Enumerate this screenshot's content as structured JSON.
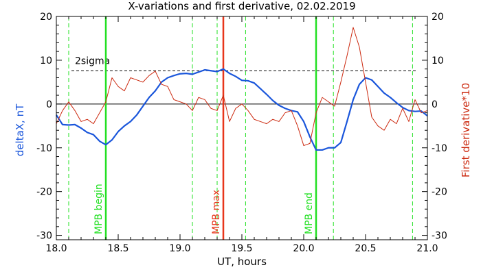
{
  "chart_data": {
    "type": "line",
    "title": "X-variations and first derivative, 02.02.2019",
    "xlabel": "UT, hours",
    "ylabel_left": "deltaX, nT",
    "ylabel_right": "First derivative*10",
    "xlim": [
      18.0,
      21.0
    ],
    "ylim": [
      -31,
      20
    ],
    "xticks": [
      "18.0",
      "18.5",
      "19.0",
      "19.5",
      "20.0",
      "20.5",
      "21.0"
    ],
    "xtick_values": [
      18.0,
      18.5,
      19.0,
      19.5,
      20.0,
      20.5,
      21.0
    ],
    "yticks": [
      "20",
      "10",
      "0",
      "-10",
      "-20",
      "-30"
    ],
    "ytick_values": [
      20,
      10,
      0,
      -10,
      -20,
      -30
    ],
    "sigma_label": "2sigma",
    "sigma_level": 7.6,
    "zero_level": 0,
    "colors": {
      "deltaX": "#1a56db",
      "derivative": "#cc2a10",
      "mpb": "#22e022",
      "max": "#e8361a",
      "dashed": "#22e022",
      "axis": "#000000"
    },
    "vertical_markers": [
      {
        "label": "MPB begin",
        "x": 18.4,
        "style": "solid",
        "color": "#22e022"
      },
      {
        "label": "MPB max",
        "x": 19.35,
        "style": "solid",
        "color": "#e8361a"
      },
      {
        "label": "MPB end",
        "x": 20.1,
        "style": "solid",
        "color": "#22e022"
      }
    ],
    "dashed_markers": [
      18.1,
      19.1,
      19.3,
      19.53,
      20.24,
      20.88
    ],
    "series": [
      {
        "name": "deltaX, nT",
        "axis": "left",
        "x": [
          18.0,
          18.05,
          18.1,
          18.15,
          18.2,
          18.25,
          18.3,
          18.35,
          18.4,
          18.45,
          18.5,
          18.55,
          18.6,
          18.65,
          18.7,
          18.75,
          18.8,
          18.85,
          18.9,
          18.95,
          19.0,
          19.05,
          19.1,
          19.15,
          19.2,
          19.25,
          19.3,
          19.35,
          19.4,
          19.45,
          19.5,
          19.55,
          19.6,
          19.65,
          19.7,
          19.75,
          19.8,
          19.85,
          19.9,
          19.95,
          20.0,
          20.05,
          20.1,
          20.15,
          20.2,
          20.25,
          20.3,
          20.35,
          20.4,
          20.45,
          20.5,
          20.55,
          20.6,
          20.65,
          20.7,
          20.75,
          20.8,
          20.85,
          20.9,
          20.95,
          21.0
        ],
        "values": [
          -2.5,
          -4.7,
          -4.8,
          -4.7,
          -5.5,
          -6.5,
          -7.0,
          -8.5,
          -9.3,
          -8.2,
          -6.3,
          -5.0,
          -4.0,
          -2.5,
          -0.5,
          1.5,
          3.0,
          5.0,
          6.0,
          6.5,
          6.9,
          7.0,
          6.8,
          7.3,
          7.8,
          7.6,
          7.4,
          8.0,
          7.0,
          6.3,
          5.4,
          5.3,
          4.8,
          3.5,
          2.2,
          0.8,
          -0.3,
          -1.0,
          -1.5,
          -1.8,
          -4.0,
          -7.5,
          -10.5,
          -10.5,
          -10.0,
          -10.0,
          -8.8,
          -4.0,
          1.0,
          4.5,
          6.0,
          5.5,
          4.0,
          2.5,
          1.5,
          0.3,
          -0.8,
          -1.5,
          -1.7,
          -1.6,
          -2.7
        ]
      },
      {
        "name": "First derivative*10",
        "axis": "right",
        "x": [
          18.0,
          18.05,
          18.1,
          18.15,
          18.2,
          18.25,
          18.3,
          18.35,
          18.4,
          18.45,
          18.5,
          18.55,
          18.6,
          18.65,
          18.7,
          18.75,
          18.8,
          18.85,
          18.9,
          18.95,
          19.0,
          19.05,
          19.1,
          19.15,
          19.2,
          19.25,
          19.3,
          19.35,
          19.4,
          19.45,
          19.5,
          19.55,
          19.6,
          19.65,
          19.7,
          19.75,
          19.8,
          19.85,
          19.9,
          19.95,
          20.0,
          20.05,
          20.1,
          20.15,
          20.2,
          20.25,
          20.3,
          20.35,
          20.4,
          20.45,
          20.5,
          20.55,
          20.6,
          20.65,
          20.7,
          20.75,
          20.8,
          20.85,
          20.9,
          20.95,
          21.0
        ],
        "values": [
          -4.5,
          -1.5,
          0.5,
          -1.5,
          -4.0,
          -3.5,
          -4.5,
          -2.0,
          0.5,
          6.0,
          4.0,
          3.0,
          6.0,
          5.5,
          5.0,
          6.5,
          7.5,
          4.5,
          4.0,
          1.0,
          0.5,
          0.0,
          -1.5,
          1.5,
          1.0,
          -1.0,
          -1.5,
          2.0,
          -4.0,
          -1.0,
          0.0,
          -1.5,
          -3.5,
          -4.0,
          -4.5,
          -3.5,
          -4.0,
          -2.0,
          -1.5,
          -5.0,
          -9.5,
          -9.0,
          -2.0,
          1.5,
          0.5,
          -0.5,
          5.0,
          11.0,
          17.5,
          13.0,
          5.0,
          -3.0,
          -5.0,
          -6.0,
          -3.5,
          -4.5,
          -1.0,
          -4.0,
          1.0,
          -2.0,
          -1.5
        ]
      }
    ]
  }
}
